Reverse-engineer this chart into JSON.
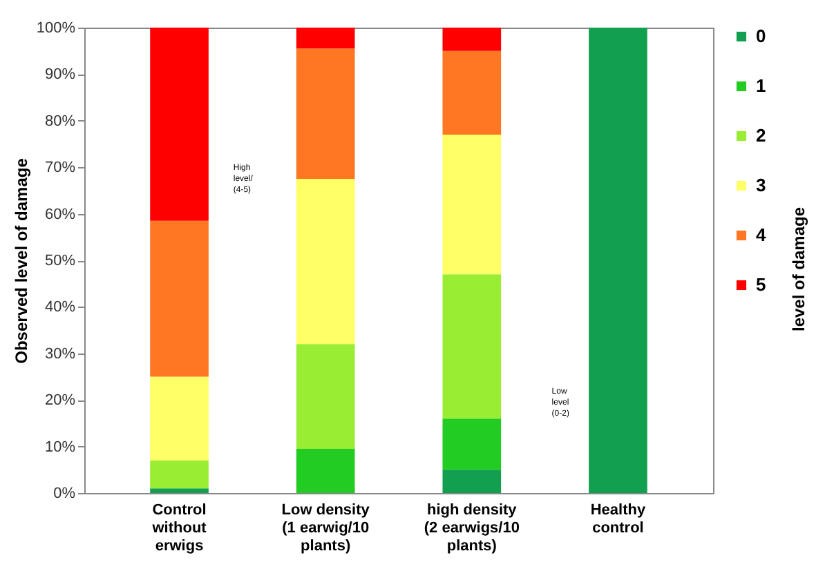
{
  "chart_data": {
    "type": "bar",
    "stacked": true,
    "ylabel": "Observed level of damage",
    "legend_title": "level of damage",
    "legend": "right",
    "categories": [
      "Control without erwigs",
      "Low density (1 earwig/10 plants)",
      "high density (2 earwigs/10 plants)",
      "Healthy control"
    ],
    "series": [
      {
        "name": "0",
        "color": "#12a050",
        "values": [
          1,
          0,
          5,
          100
        ]
      },
      {
        "name": "1",
        "color": "#22cc22",
        "values": [
          0,
          9.5,
          11,
          0
        ]
      },
      {
        "name": "2",
        "color": "#99ee33",
        "values": [
          6,
          22.5,
          31,
          0
        ]
      },
      {
        "name": "3",
        "color": "#ffff66",
        "values": [
          18,
          35.5,
          30,
          0
        ]
      },
      {
        "name": "4",
        "color": "#ff7722",
        "values": [
          33.5,
          28,
          18,
          0
        ]
      },
      {
        "name": "5",
        "color": "#ff0000",
        "values": [
          41.5,
          4.5,
          5,
          0
        ]
      }
    ],
    "ylim": [
      0,
      100
    ],
    "yticks": [
      {
        "value": 0,
        "label": "0%"
      },
      {
        "value": 10,
        "label": "10%"
      },
      {
        "value": 20,
        "label": "20%"
      },
      {
        "value": 30,
        "label": "30%"
      },
      {
        "value": 40,
        "label": "40%"
      },
      {
        "value": 50,
        "label": "50%"
      },
      {
        "value": 60,
        "label": "60%"
      },
      {
        "value": 70,
        "label": "70%"
      },
      {
        "value": 80,
        "label": "80%"
      },
      {
        "value": 90,
        "label": "90%"
      },
      {
        "value": 100,
        "label": "100%"
      }
    ],
    "grid": false,
    "annotations": [
      "High level/ (4-5)",
      "Low level (0-2)"
    ]
  }
}
